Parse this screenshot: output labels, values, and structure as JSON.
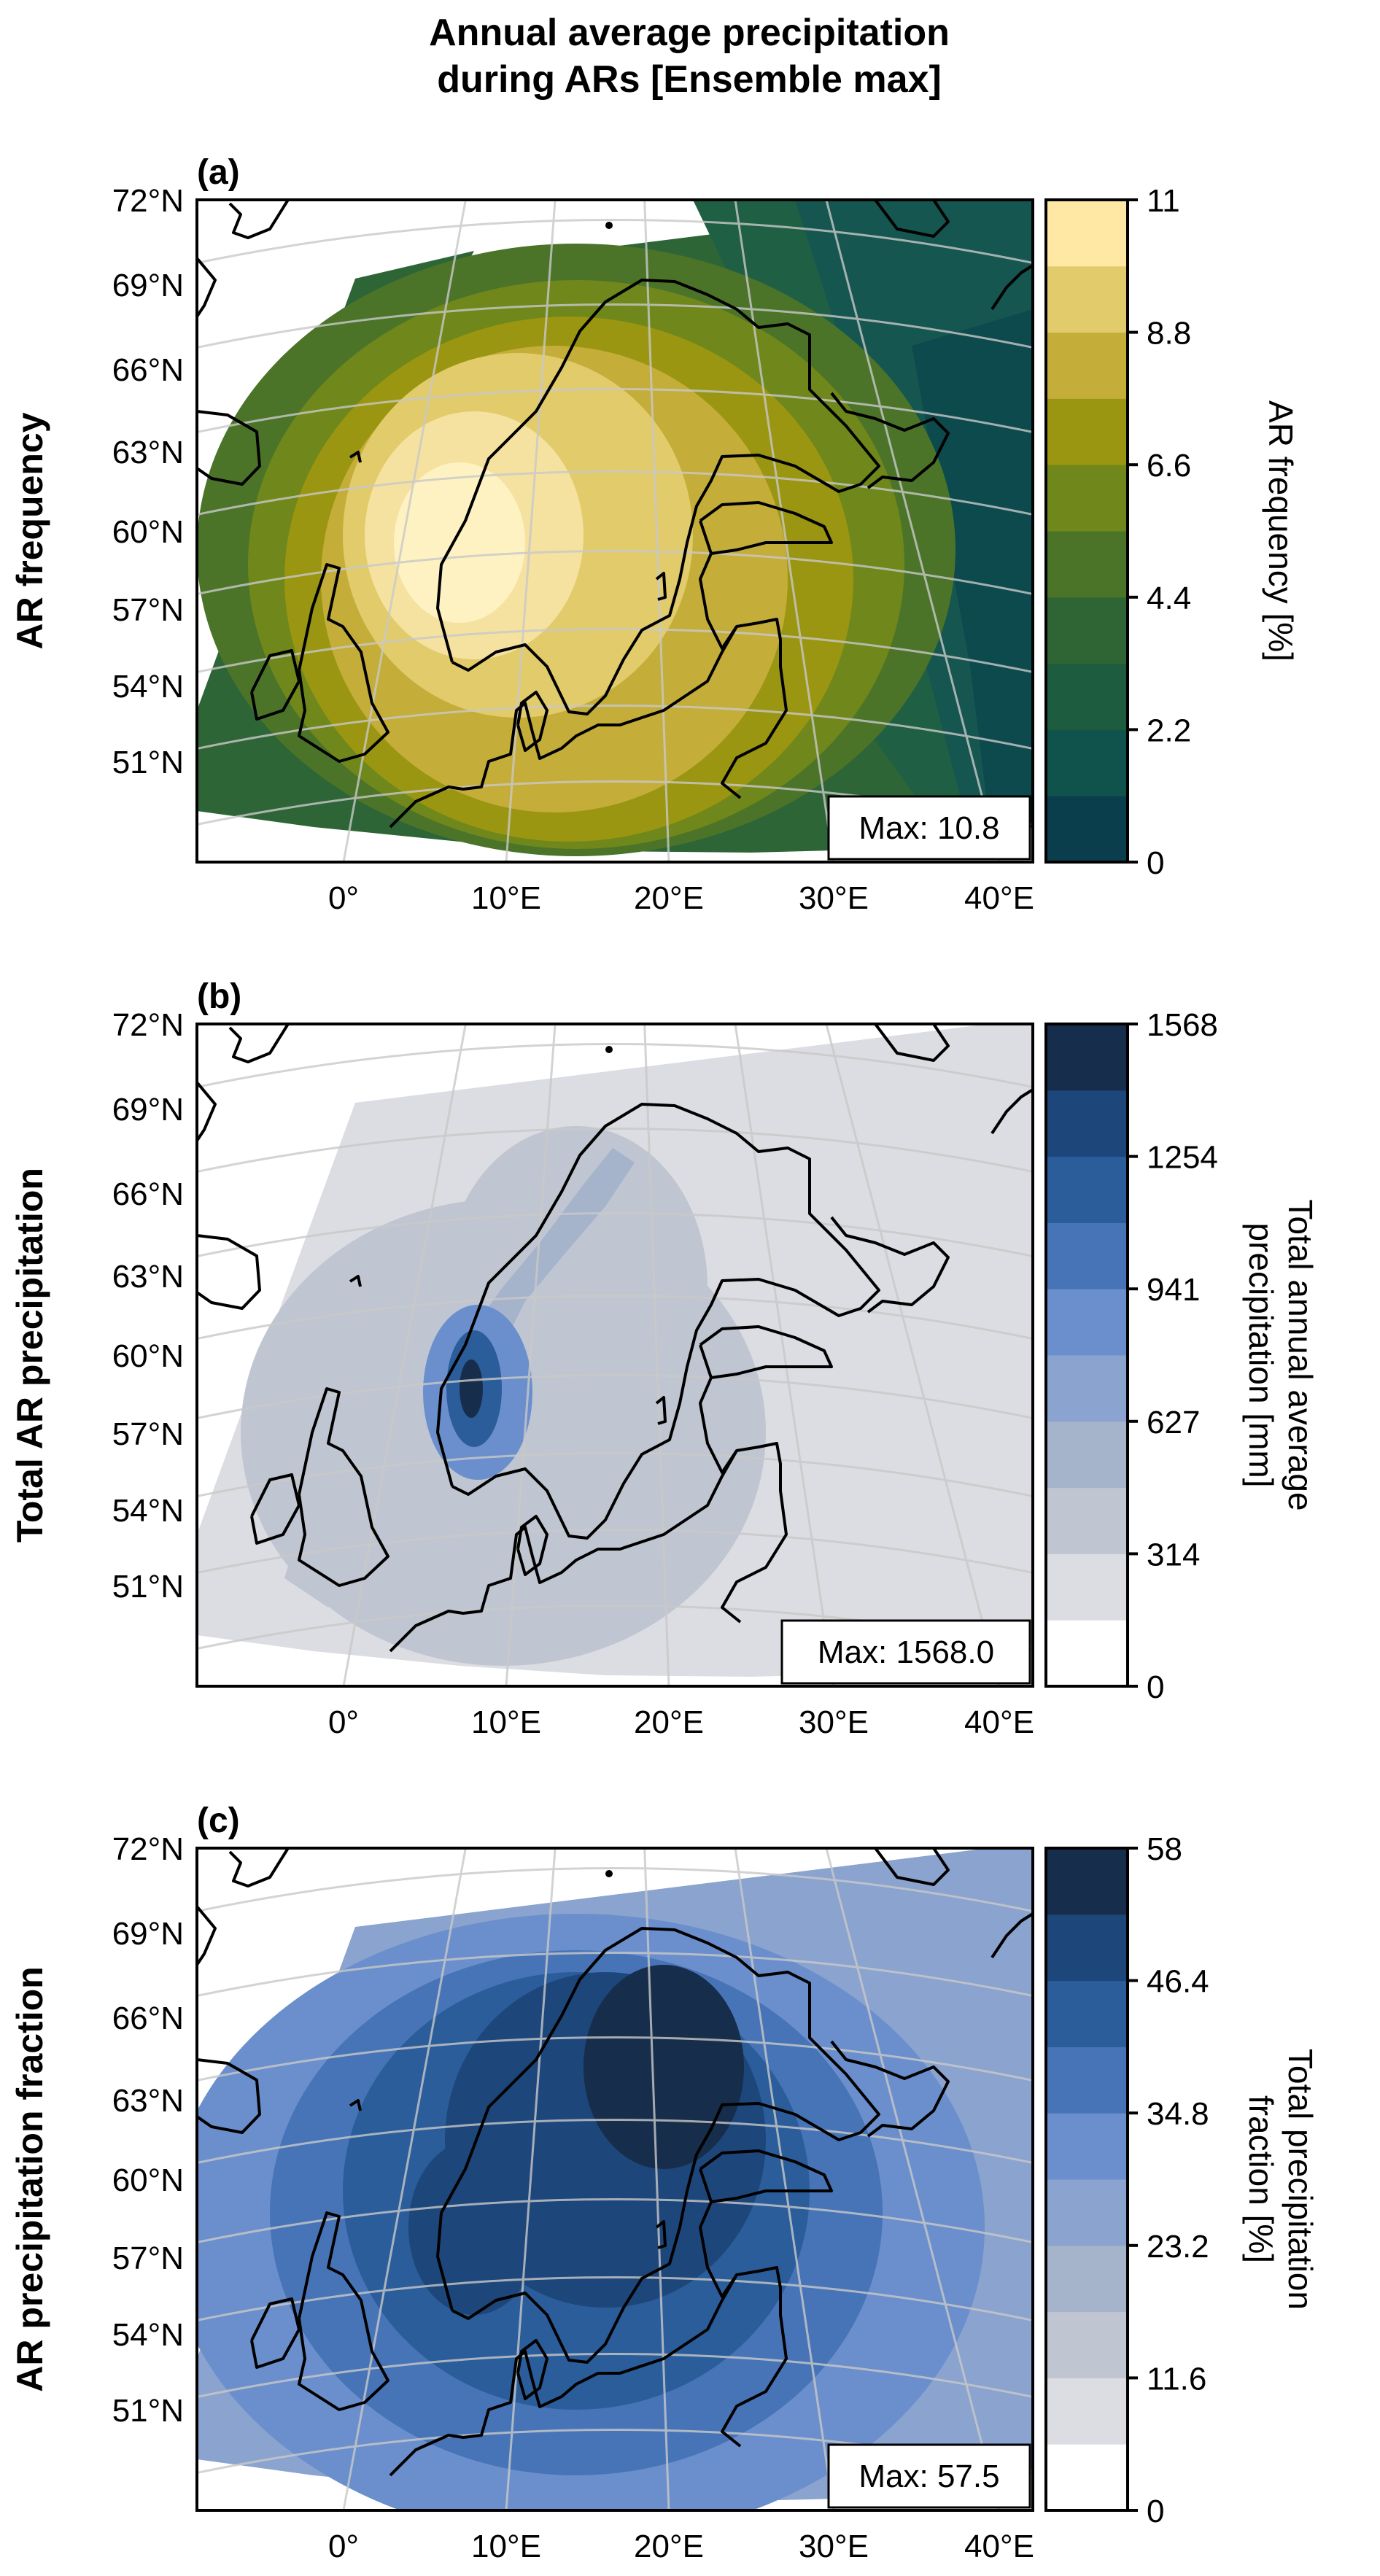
{
  "figure_title": [
    "Annual average precipitation",
    "during ARs [Ensemble max]"
  ],
  "lat_ticks": [
    "72°N",
    "69°N",
    "66°N",
    "63°N",
    "60°N",
    "57°N",
    "54°N",
    "51°N"
  ],
  "lon_ticks": [
    "0°",
    "10°E",
    "20°E",
    "30°E",
    "40°E"
  ],
  "panels": [
    {
      "id": "a",
      "label": "(a)",
      "row_label": "AR frequency",
      "max_text": "Max: 10.8",
      "colorbar_label": [
        "AR frequency [%]"
      ],
      "colorbar_ticks": [
        "0",
        "2.2",
        "4.4",
        "6.6",
        "8.8",
        "11"
      ],
      "colorbar_colors": [
        "#0a3e4d",
        "#10534d",
        "#1e5c3f",
        "#2f6535",
        "#4b7429",
        "#6f871b",
        "#9a9611",
        "#c4ad39",
        "#e2cb6a",
        "#ffe8a3"
      ],
      "field_colors": [
        "#2e6536",
        "#4b7429",
        "#6f871b",
        "#9a9611",
        "#c4ad39",
        "#e2cb6a",
        "#f6e2a0",
        "#fff2c2"
      ],
      "ocean_colors": [
        "#0d4a4d",
        "#165650",
        "#1f5f44",
        "#2e6536"
      ]
    },
    {
      "id": "b",
      "label": "(b)",
      "row_label": "Total AR precipitation",
      "max_text": "Max: 1568.0",
      "colorbar_label": [
        "Total annual average",
        "precipitation [mm]"
      ],
      "colorbar_ticks": [
        "0",
        "314",
        "627",
        "941",
        "1254",
        "1568"
      ],
      "colorbar_colors": [
        "#ffffff",
        "#dcdde2",
        "#bfc5d1",
        "#a5b3cb",
        "#8aa3cf",
        "#6a8fcc",
        "#4774b7",
        "#2a5d9a",
        "#1d467b",
        "#172d4c"
      ],
      "field_colors": [
        "#dcdde2",
        "#bfc5d1",
        "#a5b3cb",
        "#6a8fcc",
        "#2a5d9a",
        "#172d4c"
      ]
    },
    {
      "id": "c",
      "label": "(c)",
      "row_label": "AR precipitation fraction",
      "max_text": "Max: 57.5",
      "colorbar_label": [
        "Total precipitation",
        "fraction [%]"
      ],
      "colorbar_ticks": [
        "0",
        "11.6",
        "23.2",
        "34.8",
        "46.4",
        "58"
      ],
      "colorbar_colors": [
        "#ffffff",
        "#dcdde2",
        "#bfc5d1",
        "#a5b3cb",
        "#8aa3cf",
        "#6a8fcc",
        "#4774b7",
        "#2a5d9a",
        "#1d467b",
        "#172d4c"
      ],
      "field_colors": [
        "#8aa3cf",
        "#6a8fcc",
        "#4774b7",
        "#2a5d9a",
        "#1d467b",
        "#172d4c"
      ]
    }
  ]
}
